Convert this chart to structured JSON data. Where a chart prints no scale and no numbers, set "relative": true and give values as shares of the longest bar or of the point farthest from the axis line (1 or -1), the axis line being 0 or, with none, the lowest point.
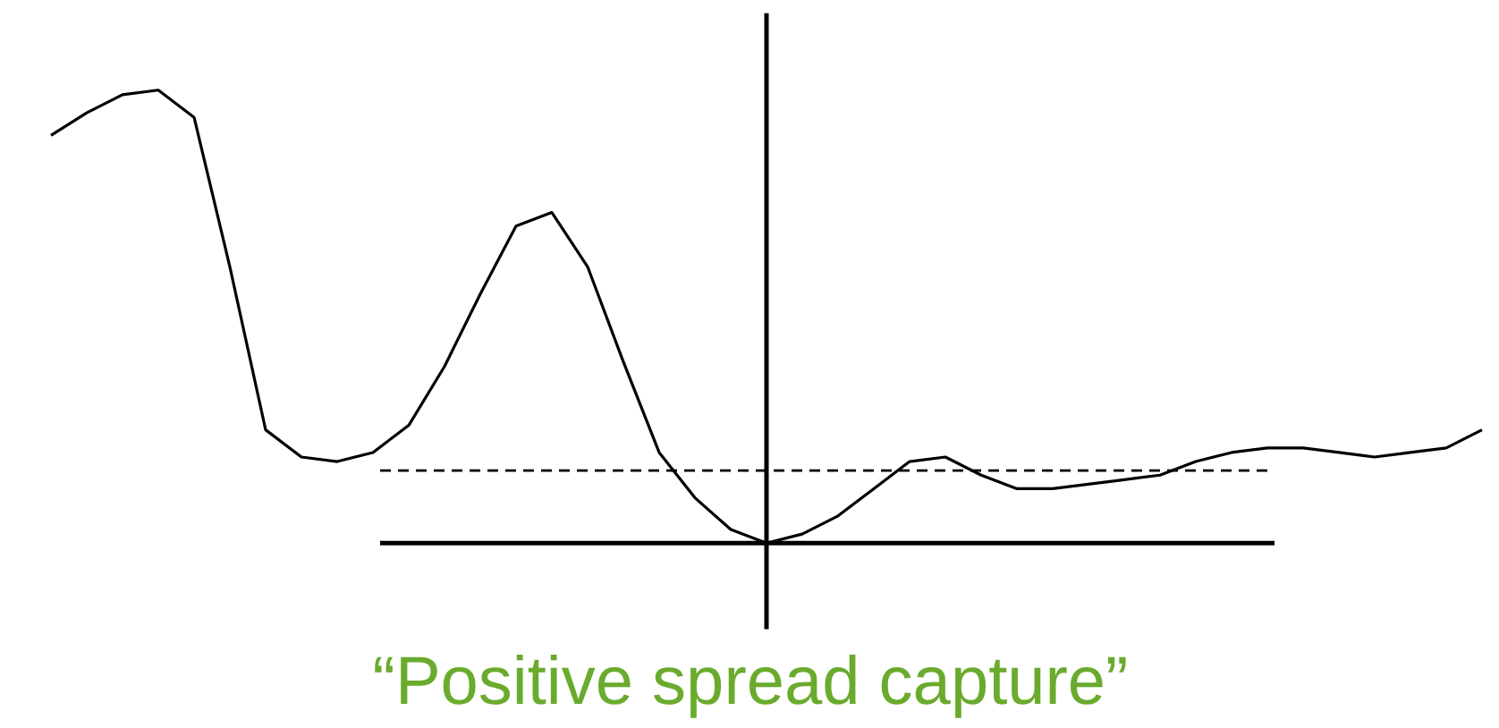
{
  "chart_data": {
    "type": "line",
    "title": "“Positive spread capture”",
    "relative": true,
    "categories": [
      null,
      null,
      null,
      null,
      null,
      null,
      null,
      null,
      null,
      null,
      null,
      null,
      null,
      null,
      null,
      null,
      null,
      null,
      null,
      null,
      null,
      null,
      null,
      null,
      null,
      null,
      null,
      null,
      null,
      null,
      null,
      null,
      null,
      null,
      null,
      null,
      null,
      null,
      null,
      null,
      null
    ],
    "series": [
      {
        "color": "#000000",
        "values": [
          0.9,
          0.95,
          0.99,
          1.0,
          0.94,
          0.61,
          0.25,
          0.19,
          0.18,
          0.2,
          0.26,
          0.39,
          0.55,
          0.7,
          0.73,
          0.61,
          0.4,
          0.2,
          0.1,
          0.03,
          0,
          0.02,
          0.06,
          0.12,
          0.18,
          0.19,
          0.15,
          0.12,
          0.12,
          0.13,
          0.14,
          0.15,
          0.18,
          0.2,
          0.21,
          0.21,
          0.2,
          0.19,
          0.2,
          0.21,
          0.25
        ]
      }
    ],
    "ref_lines": [
      {
        "axis": "y",
        "value": 0.16,
        "line_style": "dashed",
        "color": "#000000"
      }
    ]
  }
}
